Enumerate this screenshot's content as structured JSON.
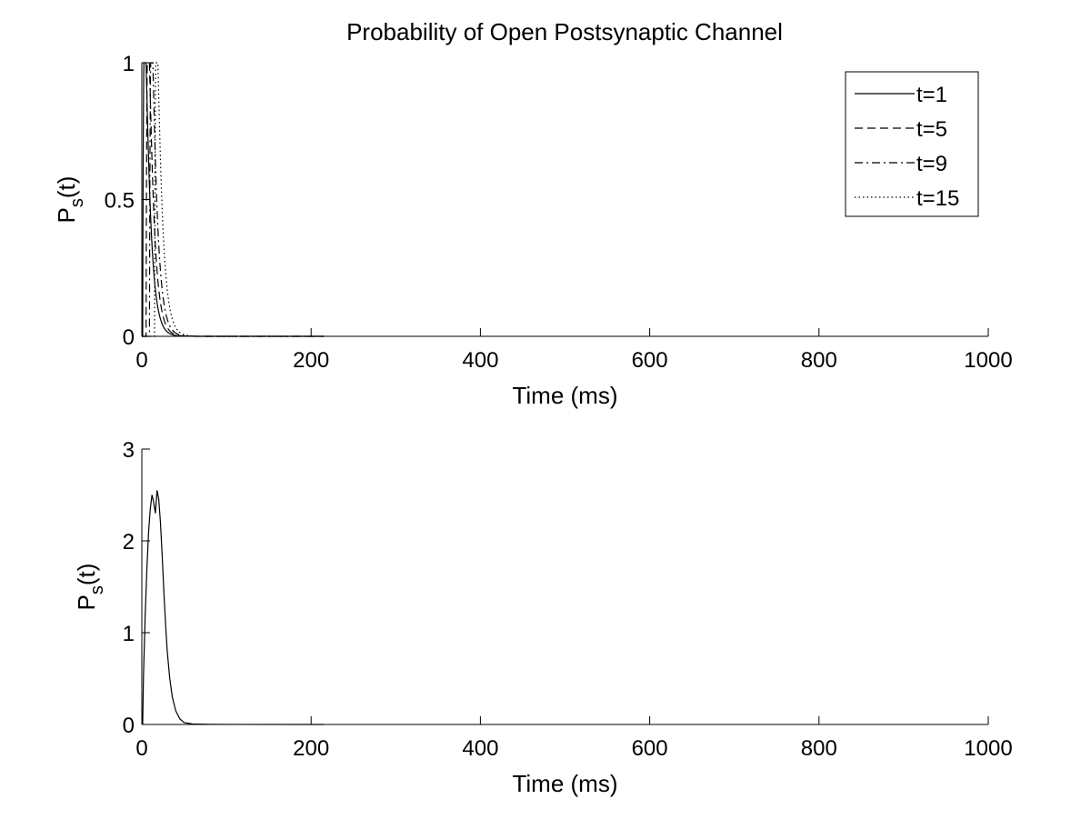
{
  "chart_data": [
    {
      "type": "line",
      "title": "Probability of Open Postsynaptic Channel",
      "xlabel": "Time (ms)",
      "ylabel": {
        "base": "P",
        "sub": "s",
        "tail": "(t)"
      },
      "xlim": [
        0,
        1000
      ],
      "ylim": [
        0,
        1
      ],
      "xticks": [
        0,
        200,
        400,
        600,
        800,
        1000
      ],
      "yticks": [
        0,
        0.5,
        1
      ],
      "grid": false,
      "legend_position": "top-right",
      "series": [
        {
          "name": "t=1",
          "style": "solid",
          "onset": 1,
          "peak": 5,
          "tau_rise": 1.5,
          "tau_decay": 6,
          "x_end": 215
        },
        {
          "name": "t=5",
          "style": "dashed",
          "onset": 5,
          "peak": 9,
          "tau_rise": 1.5,
          "tau_decay": 6,
          "x_end": 215
        },
        {
          "name": "t=9",
          "style": "dashdot",
          "onset": 9,
          "peak": 13,
          "tau_rise": 1.5,
          "tau_decay": 6,
          "x_end": 215
        },
        {
          "name": "t=15",
          "style": "dotted",
          "onset": 15,
          "peak": 19,
          "tau_rise": 1.5,
          "tau_decay": 6,
          "x_end": 215
        }
      ]
    },
    {
      "type": "line",
      "title": "",
      "xlabel": "Time (ms)",
      "ylabel": {
        "base": "P",
        "sub": "s",
        "tail": "(t)"
      },
      "xlim": [
        0,
        1000
      ],
      "ylim": [
        0,
        3
      ],
      "xticks": [
        0,
        200,
        400,
        600,
        800,
        1000
      ],
      "yticks": [
        0,
        1,
        2,
        3
      ],
      "grid": false,
      "legend_position": "none",
      "series": [
        {
          "style": "solid",
          "points": [
            [
              1,
              0
            ],
            [
              2,
              0.55
            ],
            [
              4,
              1.2
            ],
            [
              6,
              1.7
            ],
            [
              8,
              2.1
            ],
            [
              10,
              2.35
            ],
            [
              12,
              2.5
            ],
            [
              14,
              2.42
            ],
            [
              16,
              2.3
            ],
            [
              18,
              2.55
            ],
            [
              20,
              2.45
            ],
            [
              22,
              2.2
            ],
            [
              24,
              1.85
            ],
            [
              26,
              1.45
            ],
            [
              28,
              1.1
            ],
            [
              30,
              0.8
            ],
            [
              33,
              0.5
            ],
            [
              36,
              0.3
            ],
            [
              40,
              0.15
            ],
            [
              45,
              0.06
            ],
            [
              50,
              0.02
            ],
            [
              60,
              0.005
            ],
            [
              80,
              0.001
            ],
            [
              215,
              0
            ]
          ]
        }
      ]
    }
  ]
}
